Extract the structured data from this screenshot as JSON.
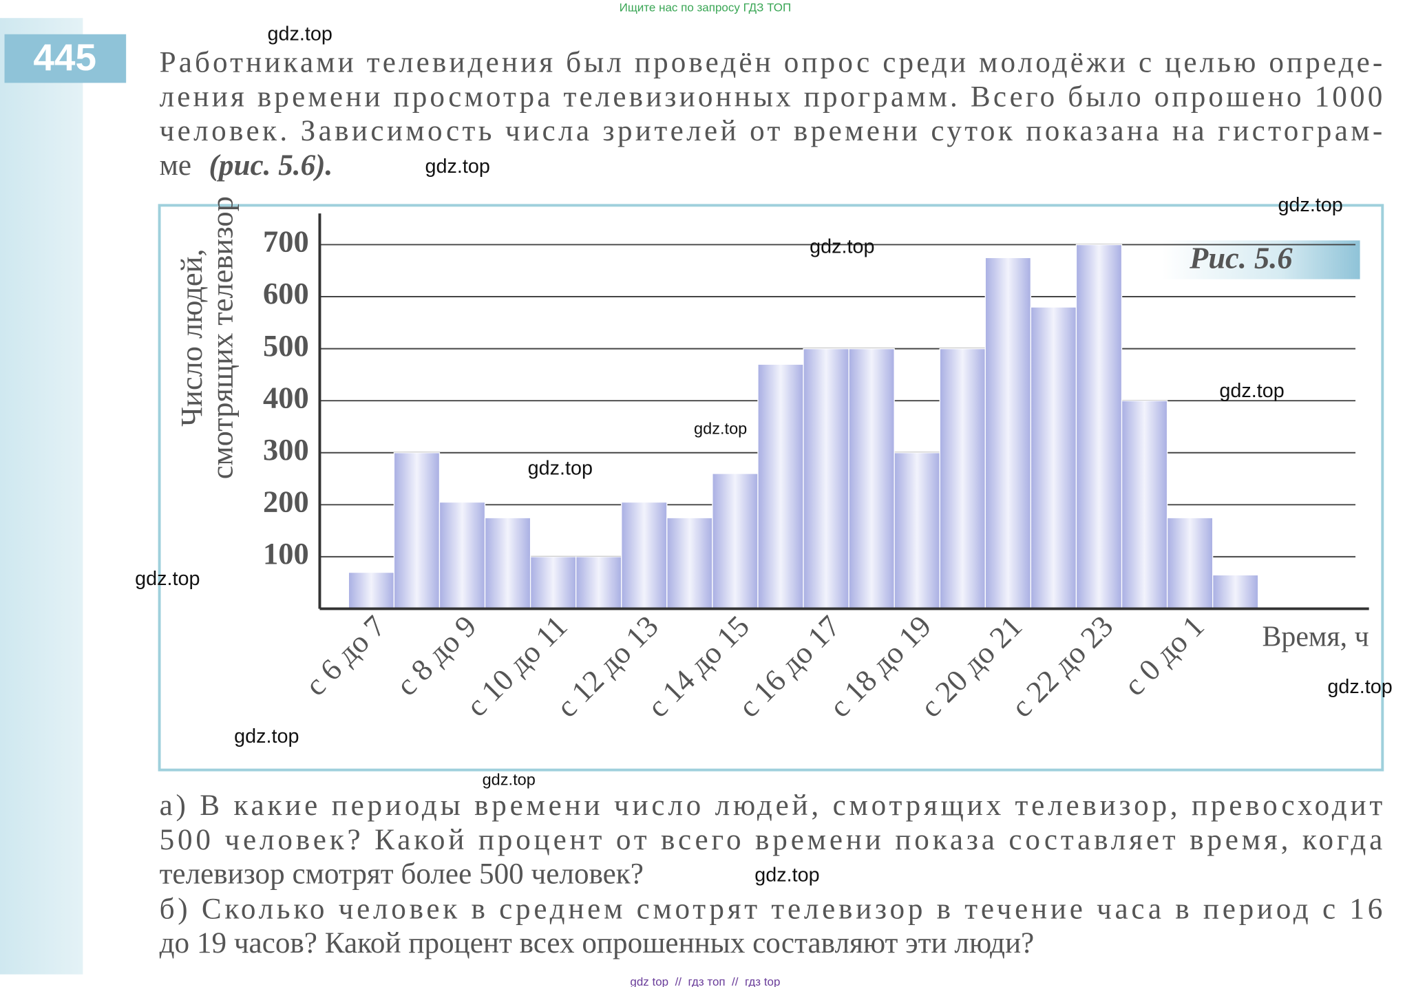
{
  "header_banner": "Ищите нас по запросу ГДЗ ТОП",
  "problem_number": "445",
  "intro_lines": [
    "Работниками телевидения был проведён опрос среди молодёжи с целью опреде-",
    "ления времени просмотра телевизионных программ. Всего было опрошено 1000",
    "человек. Зависимость числа зрителей от времени суток показана на гистограм-"
  ],
  "intro_last_line": [
    "ме",
    "(рис. 5.6)."
  ],
  "chart_data": {
    "type": "bar",
    "figure_label": "Рис. 5.6",
    "ylabel": [
      "Число людей,",
      "смотрящих телевизор"
    ],
    "xlabel": "Время, ч",
    "categories": [
      "с 6 до 7",
      null,
      "с 8 до 9",
      null,
      "с 10 до 11",
      null,
      "с 12 до 13",
      null,
      "с 14 до 15",
      null,
      "с 16 до 17",
      null,
      "с 18 до 19",
      null,
      "с 20 до 21",
      null,
      "с 22 до 23",
      null,
      "с 0 до 1",
      null
    ],
    "values": [
      70,
      300,
      205,
      175,
      100,
      100,
      205,
      175,
      260,
      470,
      500,
      500,
      300,
      500,
      675,
      580,
      700,
      400,
      175,
      65
    ],
    "color": "#a9afe3",
    "ylim": [
      0,
      760
    ],
    "yticks": [
      100,
      200,
      300,
      400,
      500,
      600,
      700
    ],
    "grid": true
  },
  "question_lines": [
    "а) В какие периоды времени число людей, смотрящих телевизор, превосходит",
    "500 человек? Какой процент от всего времени показа составляет время, когда",
    "телевизор смотрят более 500 человек?",
    "б) Сколько человек в среднем смотрят телевизор в течение часа в период с 16",
    "до 19 часов? Какой процент всех опрошенных составляют эти люди?"
  ],
  "watermarks": [
    "gdz.top",
    "gdz.top",
    "gdz.top",
    "gdz.top",
    "gdz.top",
    "gdz.top",
    "gdz.top",
    "gdz.top",
    "gdz.top",
    "gdz.top",
    "gdz.top",
    "gdz.top"
  ],
  "footer": "gdz top  //  гдз топ  //  гдз top"
}
